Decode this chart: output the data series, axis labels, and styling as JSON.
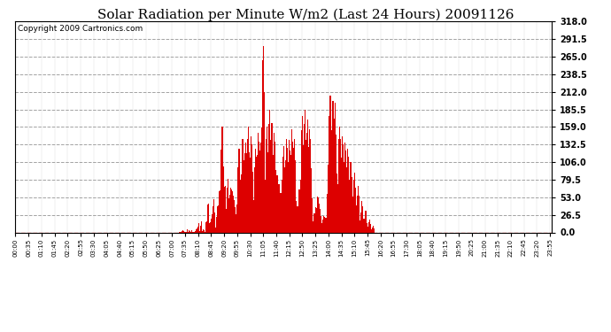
{
  "title": "Solar Radiation per Minute W/m2 (Last 24 Hours) 20091126",
  "copyright": "Copyright 2009 Cartronics.com",
  "yticks": [
    0.0,
    26.5,
    53.0,
    79.5,
    106.0,
    132.5,
    159.0,
    185.5,
    212.0,
    238.5,
    265.0,
    291.5,
    318.0
  ],
  "ymax": 318.0,
  "ymin": 0.0,
  "bg_color": "#ffffff",
  "plot_bg_color": "#ffffff",
  "bar_color": "#dd0000",
  "hgrid_color": "#999999",
  "vgrid_color": "#cccccc",
  "title_fontsize": 11,
  "copyright_fontsize": 6.5,
  "tick_step_minutes": 35
}
